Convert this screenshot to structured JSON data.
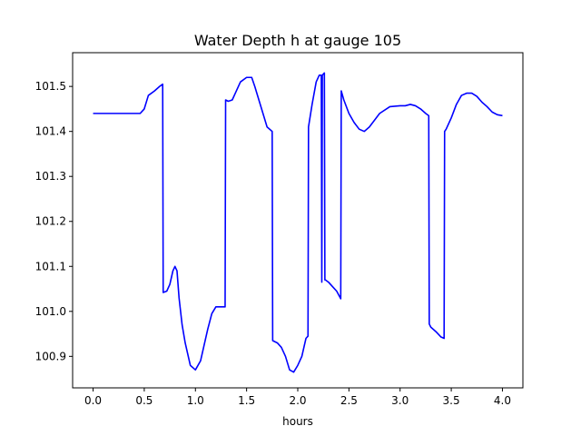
{
  "chart_data": {
    "type": "line",
    "title": "Water Depth h at gauge 105",
    "xlabel": "hours",
    "ylabel": "",
    "xlim": [
      -0.2,
      4.2
    ],
    "ylim": [
      100.83,
      101.575
    ],
    "xticks": [
      0.0,
      0.5,
      1.0,
      1.5,
      2.0,
      2.5,
      3.0,
      3.5,
      4.0
    ],
    "xtick_labels": [
      "0.0",
      "0.5",
      "1.0",
      "1.5",
      "2.0",
      "2.5",
      "3.0",
      "3.5",
      "4.0"
    ],
    "yticks": [
      100.9,
      101.0,
      101.1,
      101.2,
      101.3,
      101.4,
      101.5
    ],
    "ytick_labels": [
      "100.9",
      "101.0",
      "101.1",
      "101.2",
      "101.3",
      "101.4",
      "101.5"
    ],
    "grid": false,
    "series": [
      {
        "color": "#0000ff",
        "x": [
          0.0,
          0.2,
          0.3,
          0.4,
          0.46,
          0.5,
          0.54,
          0.6,
          0.65,
          0.68,
          0.685,
          0.72,
          0.75,
          0.78,
          0.8,
          0.82,
          0.84,
          0.87,
          0.9,
          0.95,
          1.0,
          1.05,
          1.08,
          1.12,
          1.16,
          1.2,
          1.24,
          1.28,
          1.29,
          1.295,
          1.32,
          1.36,
          1.4,
          1.44,
          1.5,
          1.55,
          1.58,
          1.62,
          1.66,
          1.7,
          1.75,
          1.755,
          1.8,
          1.84,
          1.88,
          1.92,
          1.96,
          2.0,
          2.04,
          2.08,
          2.1,
          2.105,
          2.14,
          2.18,
          2.21,
          2.23,
          2.235,
          2.24,
          2.26,
          2.265,
          2.27,
          2.3,
          2.34,
          2.38,
          2.42,
          2.425,
          2.45,
          2.5,
          2.55,
          2.6,
          2.65,
          2.7,
          2.8,
          2.9,
          3.0,
          3.05,
          3.1,
          3.15,
          3.2,
          3.25,
          3.28,
          3.285,
          3.3,
          3.35,
          3.4,
          3.43,
          3.435,
          3.45,
          3.5,
          3.55,
          3.6,
          3.65,
          3.7,
          3.75,
          3.8,
          3.85,
          3.9,
          3.95,
          4.0
        ],
        "y": [
          101.44,
          101.44,
          101.44,
          101.44,
          101.44,
          101.45,
          101.48,
          101.49,
          101.5,
          101.505,
          101.042,
          101.045,
          101.06,
          101.09,
          101.1,
          101.09,
          101.03,
          100.97,
          100.93,
          100.88,
          100.87,
          100.89,
          100.92,
          100.96,
          100.995,
          101.01,
          101.01,
          101.01,
          101.01,
          101.47,
          101.467,
          101.47,
          101.49,
          101.51,
          101.52,
          101.52,
          101.5,
          101.47,
          101.44,
          101.41,
          101.4,
          100.935,
          100.93,
          100.92,
          100.9,
          100.87,
          100.865,
          100.88,
          100.9,
          100.94,
          100.945,
          101.41,
          101.46,
          101.51,
          101.525,
          101.525,
          101.065,
          101.525,
          101.53,
          101.07,
          101.07,
          101.065,
          101.055,
          101.045,
          101.028,
          101.49,
          101.47,
          101.44,
          101.42,
          101.405,
          101.4,
          101.41,
          101.44,
          101.455,
          101.457,
          101.457,
          101.46,
          101.457,
          101.45,
          101.44,
          101.435,
          100.972,
          100.965,
          100.955,
          100.943,
          100.94,
          101.4,
          101.405,
          101.43,
          101.46,
          101.48,
          101.485,
          101.485,
          101.478,
          101.465,
          101.455,
          101.443,
          101.437,
          101.435
        ]
      }
    ]
  }
}
